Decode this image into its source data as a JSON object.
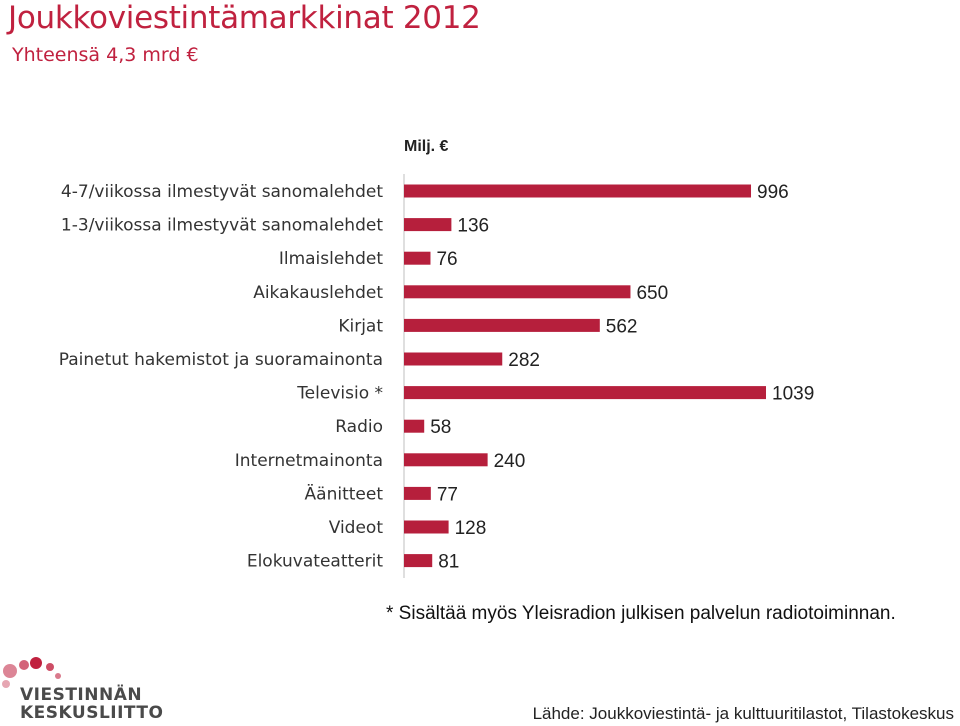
{
  "title": "Joukkoviestintämarkkinat 2012",
  "subtitle": "Yhteensä 4,3 mrd €",
  "chart_data": {
    "type": "bar",
    "orientation": "horizontal",
    "unit_label": "Milj. €",
    "categories": [
      "4-7/viikossa ilmestyvät sanomalehdet",
      "1-3/viikossa ilmestyvät sanomalehdet",
      "Ilmaislehdet",
      "Aikakauslehdet",
      "Kirjat",
      "Painetut hakemistot ja suoramainonta",
      "Televisio *",
      "Radio",
      "Internetmainonta",
      "Äänitteet",
      "Videot",
      "Elokuvateatterit"
    ],
    "values": [
      996,
      136,
      76,
      650,
      562,
      282,
      1039,
      58,
      240,
      77,
      128,
      81
    ],
    "data_labels": [
      "996",
      "136",
      "76",
      "650",
      "562",
      "282",
      "1039",
      "58",
      "240",
      "77",
      "128",
      "81"
    ],
    "xlim": [
      0,
      1039
    ],
    "bar_color": "#b61f3c",
    "grid": false,
    "legend": "none"
  },
  "footnote": "* Sisältää myös Yleisradion julkisen palvelun radiotoiminnan.",
  "source": "Lähde: Joukkoviestintä- ja kulttuuritilastot, Tilastokeskus",
  "logo": {
    "line1": "VIESTINNÄN",
    "line2": "KESKUSLIITTO",
    "color": "#c0213f"
  }
}
